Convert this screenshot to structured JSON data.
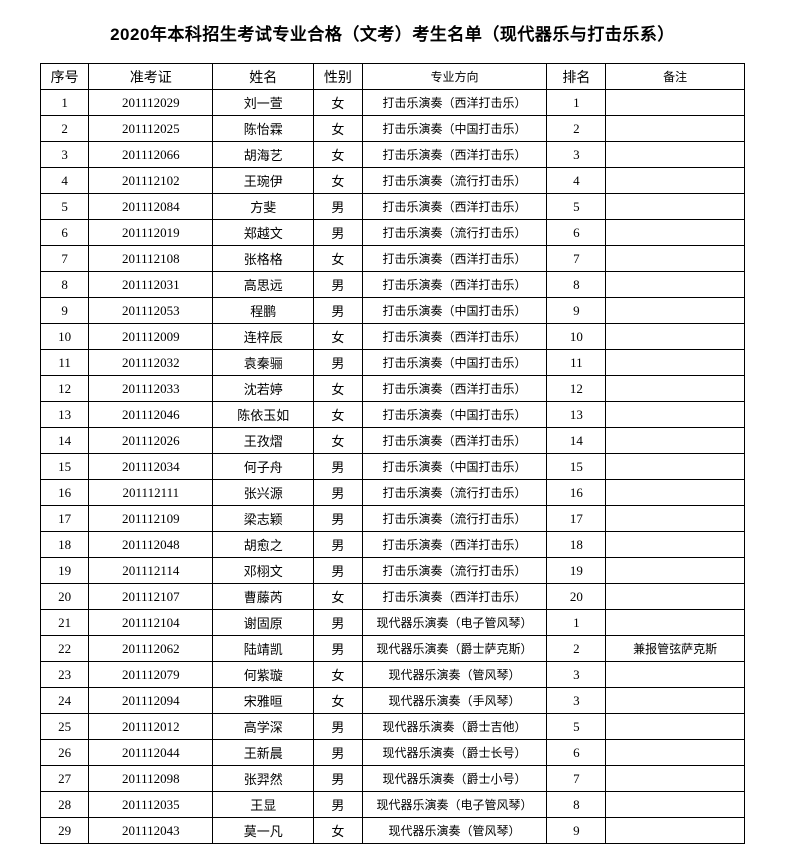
{
  "title": "2020年本科招生考试专业合格（文考）考生名单（现代器乐与打击乐系）",
  "columns": [
    "序号",
    "准考证",
    "姓名",
    "性别",
    "专业方向",
    "排名",
    "备注"
  ],
  "rows": [
    {
      "seq": "1",
      "id": "201112029",
      "name": "刘一萱",
      "gender": "女",
      "major": "打击乐演奏（西洋打击乐）",
      "rank": "1",
      "note": ""
    },
    {
      "seq": "2",
      "id": "201112025",
      "name": "陈怡霖",
      "gender": "女",
      "major": "打击乐演奏（中国打击乐）",
      "rank": "2",
      "note": ""
    },
    {
      "seq": "3",
      "id": "201112066",
      "name": "胡海艺",
      "gender": "女",
      "major": "打击乐演奏（西洋打击乐）",
      "rank": "3",
      "note": ""
    },
    {
      "seq": "4",
      "id": "201112102",
      "name": "王琬伊",
      "gender": "女",
      "major": "打击乐演奏（流行打击乐）",
      "rank": "4",
      "note": ""
    },
    {
      "seq": "5",
      "id": "201112084",
      "name": "方斐",
      "gender": "男",
      "major": "打击乐演奏（西洋打击乐）",
      "rank": "5",
      "note": ""
    },
    {
      "seq": "6",
      "id": "201112019",
      "name": "郑越文",
      "gender": "男",
      "major": "打击乐演奏（流行打击乐）",
      "rank": "6",
      "note": ""
    },
    {
      "seq": "7",
      "id": "201112108",
      "name": "张格格",
      "gender": "女",
      "major": "打击乐演奏（西洋打击乐）",
      "rank": "7",
      "note": ""
    },
    {
      "seq": "8",
      "id": "201112031",
      "name": "高思远",
      "gender": "男",
      "major": "打击乐演奏（西洋打击乐）",
      "rank": "8",
      "note": ""
    },
    {
      "seq": "9",
      "id": "201112053",
      "name": "程鹏",
      "gender": "男",
      "major": "打击乐演奏（中国打击乐）",
      "rank": "9",
      "note": ""
    },
    {
      "seq": "10",
      "id": "201112009",
      "name": "连梓辰",
      "gender": "女",
      "major": "打击乐演奏（西洋打击乐）",
      "rank": "10",
      "note": ""
    },
    {
      "seq": "11",
      "id": "201112032",
      "name": "袁秦骊",
      "gender": "男",
      "major": "打击乐演奏（中国打击乐）",
      "rank": "11",
      "note": ""
    },
    {
      "seq": "12",
      "id": "201112033",
      "name": "沈若婷",
      "gender": "女",
      "major": "打击乐演奏（西洋打击乐）",
      "rank": "12",
      "note": ""
    },
    {
      "seq": "13",
      "id": "201112046",
      "name": "陈依玉如",
      "gender": "女",
      "major": "打击乐演奏（中国打击乐）",
      "rank": "13",
      "note": ""
    },
    {
      "seq": "14",
      "id": "201112026",
      "name": "王孜熠",
      "gender": "女",
      "major": "打击乐演奏（西洋打击乐）",
      "rank": "14",
      "note": ""
    },
    {
      "seq": "15",
      "id": "201112034",
      "name": "何子舟",
      "gender": "男",
      "major": "打击乐演奏（中国打击乐）",
      "rank": "15",
      "note": ""
    },
    {
      "seq": "16",
      "id": "201112111",
      "name": "张兴源",
      "gender": "男",
      "major": "打击乐演奏（流行打击乐）",
      "rank": "16",
      "note": ""
    },
    {
      "seq": "17",
      "id": "201112109",
      "name": "梁志颖",
      "gender": "男",
      "major": "打击乐演奏（流行打击乐）",
      "rank": "17",
      "note": ""
    },
    {
      "seq": "18",
      "id": "201112048",
      "name": "胡愈之",
      "gender": "男",
      "major": "打击乐演奏（西洋打击乐）",
      "rank": "18",
      "note": ""
    },
    {
      "seq": "19",
      "id": "201112114",
      "name": "邓栩文",
      "gender": "男",
      "major": "打击乐演奏（流行打击乐）",
      "rank": "19",
      "note": ""
    },
    {
      "seq": "20",
      "id": "201112107",
      "name": "曹藤芮",
      "gender": "女",
      "major": "打击乐演奏（西洋打击乐）",
      "rank": "20",
      "note": ""
    },
    {
      "seq": "21",
      "id": "201112104",
      "name": "谢固原",
      "gender": "男",
      "major": "现代器乐演奏（电子管风琴）",
      "rank": "1",
      "note": ""
    },
    {
      "seq": "22",
      "id": "201112062",
      "name": "陆靖凯",
      "gender": "男",
      "major": "现代器乐演奏（爵士萨克斯）",
      "rank": "2",
      "note": "兼报管弦萨克斯"
    },
    {
      "seq": "23",
      "id": "201112079",
      "name": "何紫璇",
      "gender": "女",
      "major": "现代器乐演奏（管风琴）",
      "rank": "3",
      "note": ""
    },
    {
      "seq": "24",
      "id": "201112094",
      "name": "宋雅晅",
      "gender": "女",
      "major": "现代器乐演奏（手风琴）",
      "rank": "3",
      "note": ""
    },
    {
      "seq": "25",
      "id": "201112012",
      "name": "高学深",
      "gender": "男",
      "major": "现代器乐演奏（爵士吉他）",
      "rank": "5",
      "note": ""
    },
    {
      "seq": "26",
      "id": "201112044",
      "name": "王新晨",
      "gender": "男",
      "major": "现代器乐演奏（爵士长号）",
      "rank": "6",
      "note": ""
    },
    {
      "seq": "27",
      "id": "201112098",
      "name": "张羿然",
      "gender": "男",
      "major": "现代器乐演奏（爵士小号）",
      "rank": "7",
      "note": ""
    },
    {
      "seq": "28",
      "id": "201112035",
      "name": "王显",
      "gender": "男",
      "major": "现代器乐演奏（电子管风琴）",
      "rank": "8",
      "note": ""
    },
    {
      "seq": "29",
      "id": "201112043",
      "name": "莫一凡",
      "gender": "女",
      "major": "现代器乐演奏（管风琴）",
      "rank": "9",
      "note": ""
    }
  ]
}
